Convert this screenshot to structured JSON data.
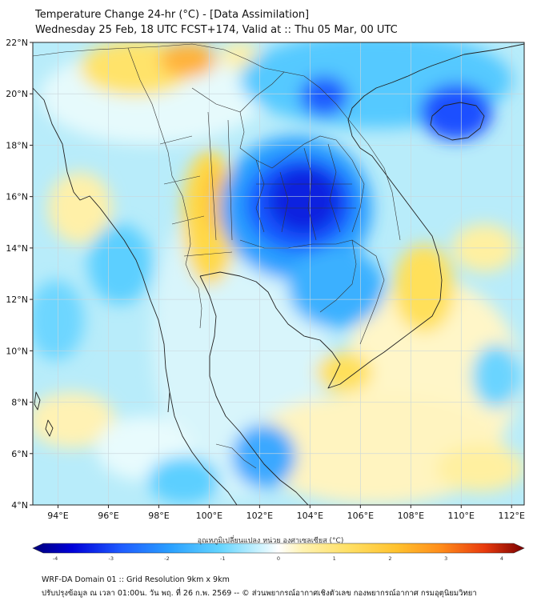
{
  "title": {
    "line1": "Temperature Change 24-hr (°C) - [Data Assimilation]",
    "line2": "Wednesday 25 Feb, 18 UTC FCST+174, Valid at :: Thu 05 Mar, 00 UTC"
  },
  "axes": {
    "lon_labels": [
      "94°E",
      "96°E",
      "98°E",
      "100°E",
      "102°E",
      "104°E",
      "106°E",
      "108°E",
      "110°E",
      "112°E"
    ],
    "lon_values": [
      94,
      96,
      98,
      100,
      102,
      104,
      106,
      108,
      110,
      112
    ],
    "lon_range": [
      93,
      112.5
    ],
    "lat_labels": [
      "22°N",
      "20°N",
      "18°N",
      "16°N",
      "14°N",
      "12°N",
      "10°N",
      "8°N",
      "6°N",
      "4°N"
    ],
    "lat_values": [
      22,
      20,
      18,
      16,
      14,
      12,
      10,
      8,
      6,
      4
    ],
    "lat_range": [
      4,
      22
    ]
  },
  "colorbar": {
    "label": "อุณหภูมิเปลี่ยนแปลง หน่วย องศาเซลเซียส (°C)",
    "tick_labels": [
      "-4",
      "-3",
      "-2",
      "-1",
      "0",
      "1",
      "2",
      "3",
      "4"
    ],
    "min": -4,
    "max": 4,
    "colors": [
      "#00007a",
      "#0000d9",
      "#1f5cff",
      "#2aa0ff",
      "#63d4ff",
      "#c9f2ff",
      "#ffffff",
      "#fff2b0",
      "#ffe066",
      "#ffc22e",
      "#ff8c1a",
      "#e83a0d",
      "#7a0000"
    ]
  },
  "footer": {
    "line1": "WRF-DA Domain 01 :: Grid Resolution 9km x 9km",
    "line2": "ปรับปรุงข้อมูล ณ เวลา 01:00น. วัน พฤ. ที่ 26 ก.พ. 2569 -- © ส่วนพยากรณ์อากาศเชิงตัวเลข กองพยากรณ์อากาศ กรมอุตุนิยมวิทยา"
  }
}
